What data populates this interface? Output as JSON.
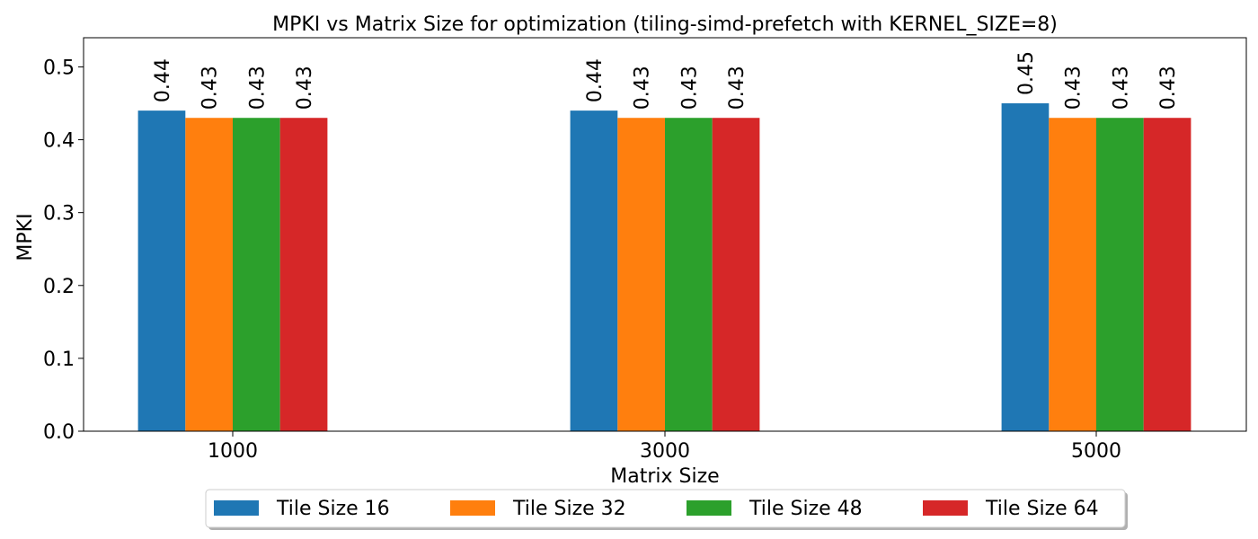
{
  "chart_data": {
    "type": "bar",
    "title": "MPKI vs Matrix Size for optimization (tiling-simd-prefetch with KERNEL_SIZE=8)",
    "xlabel": "Matrix Size",
    "ylabel": "MPKI",
    "categories": [
      "1000",
      "3000",
      "5000"
    ],
    "series": [
      {
        "name": "Tile Size 16",
        "color": "#1f77b4",
        "values": [
          0.44,
          0.44,
          0.45
        ],
        "labels": [
          "0.44",
          "0.44",
          "0.45"
        ]
      },
      {
        "name": "Tile Size 32",
        "color": "#ff7f0e",
        "values": [
          0.43,
          0.43,
          0.43
        ],
        "labels": [
          "0.43",
          "0.43",
          "0.43"
        ]
      },
      {
        "name": "Tile Size 48",
        "color": "#2ca02c",
        "values": [
          0.43,
          0.43,
          0.43
        ],
        "labels": [
          "0.43",
          "0.43",
          "0.43"
        ]
      },
      {
        "name": "Tile Size 64",
        "color": "#d62728",
        "values": [
          0.43,
          0.43,
          0.43
        ],
        "labels": [
          "0.43",
          "0.43",
          "0.43"
        ]
      }
    ],
    "ylim": [
      0,
      0.54
    ],
    "yticks": [
      {
        "value": 0.0,
        "label": "0.0"
      },
      {
        "value": 0.1,
        "label": "0.1"
      },
      {
        "value": 0.2,
        "label": "0.2"
      },
      {
        "value": 0.3,
        "label": "0.3"
      },
      {
        "value": 0.4,
        "label": "0.4"
      },
      {
        "value": 0.5,
        "label": "0.5"
      }
    ],
    "grid": false,
    "legend_position": "bottom-center"
  }
}
